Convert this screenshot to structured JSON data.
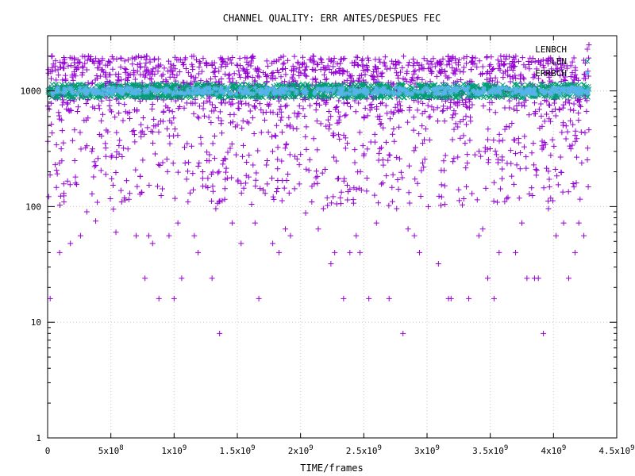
{
  "chart_data": {
    "type": "scatter",
    "title": "CHANNEL QUALITY: ERR ANTES/DESPUES FEC",
    "xlabel": "TIME/frames",
    "ylabel": "",
    "xlim": [
      0,
      4500000000
    ],
    "ylim": [
      1,
      3000
    ],
    "yscale": "log",
    "grid": true,
    "legend_position": "top-right",
    "x_ticks": [
      {
        "value": 0,
        "base": "0",
        "exp": ""
      },
      {
        "value": 500000000,
        "base": "5x10",
        "exp": "8"
      },
      {
        "value": 1000000000,
        "base": "1x10",
        "exp": "9"
      },
      {
        "value": 1500000000,
        "base": "1.5x10",
        "exp": "9"
      },
      {
        "value": 2000000000,
        "base": "2x10",
        "exp": "9"
      },
      {
        "value": 2500000000,
        "base": "2.5x10",
        "exp": "9"
      },
      {
        "value": 3000000000,
        "base": "3x10",
        "exp": "9"
      },
      {
        "value": 3500000000,
        "base": "3.5x10",
        "exp": "9"
      },
      {
        "value": 4000000000,
        "base": "4x10",
        "exp": "9"
      },
      {
        "value": 4500000000,
        "base": "4.5x10",
        "exp": "9"
      }
    ],
    "y_ticks": [
      {
        "value": 1,
        "label": "1"
      },
      {
        "value": 10,
        "label": "10"
      },
      {
        "value": 100,
        "label": "100"
      },
      {
        "value": 1000,
        "label": "1000"
      }
    ],
    "series": [
      {
        "name": "LENBCH",
        "color": "#9400d3",
        "marker": "plus",
        "points": [
          [
            20000000,
            16
          ],
          [
            60000000,
            230
          ],
          [
            95000000,
            40
          ],
          [
            130000000,
            110
          ],
          [
            180000000,
            48
          ],
          [
            220000000,
            180
          ],
          [
            260000000,
            56
          ],
          [
            310000000,
            90
          ],
          [
            350000000,
            300
          ],
          [
            380000000,
            75
          ],
          [
            410000000,
            420
          ],
          [
            460000000,
            190
          ],
          [
            520000000,
            95
          ],
          [
            540000000,
            60
          ],
          [
            600000000,
            320
          ],
          [
            650000000,
            130
          ],
          [
            700000000,
            56
          ],
          [
            730000000,
            128
          ],
          [
            770000000,
            24
          ],
          [
            800000000,
            56
          ],
          [
            830000000,
            48
          ],
          [
            880000000,
            16
          ],
          [
            910000000,
            240
          ],
          [
            960000000,
            56
          ],
          [
            1000000000,
            16
          ],
          [
            1030000000,
            72
          ],
          [
            1060000000,
            24
          ],
          [
            1110000000,
            110
          ],
          [
            1160000000,
            56
          ],
          [
            1190000000,
            40
          ],
          [
            1250000000,
            150
          ],
          [
            1300000000,
            24
          ],
          [
            1330000000,
            96
          ],
          [
            1360000000,
            8
          ],
          [
            1400000000,
            260
          ],
          [
            1460000000,
            72
          ],
          [
            1530000000,
            48
          ],
          [
            1590000000,
            180
          ],
          [
            1640000000,
            72
          ],
          [
            1670000000,
            16
          ],
          [
            1720000000,
            130
          ],
          [
            1780000000,
            48
          ],
          [
            1830000000,
            40
          ],
          [
            1880000000,
            64
          ],
          [
            1920000000,
            56
          ],
          [
            1990000000,
            230
          ],
          [
            2040000000,
            88
          ],
          [
            2090000000,
            150
          ],
          [
            2140000000,
            64
          ],
          [
            2180000000,
            96
          ],
          [
            2240000000,
            32
          ],
          [
            2270000000,
            40
          ],
          [
            2340000000,
            16
          ],
          [
            2390000000,
            40
          ],
          [
            2440000000,
            56
          ],
          [
            2470000000,
            40
          ],
          [
            2540000000,
            16
          ],
          [
            2600000000,
            72
          ],
          [
            2650000000,
            160
          ],
          [
            2700000000,
            16
          ],
          [
            2760000000,
            96
          ],
          [
            2810000000,
            8
          ],
          [
            2850000000,
            64
          ],
          [
            2900000000,
            56
          ],
          [
            2940000000,
            40
          ],
          [
            3010000000,
            100
          ],
          [
            3090000000,
            32
          ],
          [
            3170000000,
            16
          ],
          [
            3190000000,
            16
          ],
          [
            3250000000,
            140
          ],
          [
            3330000000,
            16
          ],
          [
            3410000000,
            56
          ],
          [
            3440000000,
            64
          ],
          [
            3480000000,
            24
          ],
          [
            3530000000,
            16
          ],
          [
            3570000000,
            40
          ],
          [
            3640000000,
            120
          ],
          [
            3700000000,
            40
          ],
          [
            3750000000,
            72
          ],
          [
            3790000000,
            24
          ],
          [
            3850000000,
            24
          ],
          [
            3880000000,
            24
          ],
          [
            3920000000,
            8
          ],
          [
            3960000000,
            96
          ],
          [
            4020000000,
            56
          ],
          [
            4080000000,
            72
          ],
          [
            4120000000,
            24
          ],
          [
            4170000000,
            40
          ],
          [
            4200000000,
            72
          ],
          [
            4240000000,
            56
          ],
          [
            4270000000,
            320
          ],
          [
            4280000000,
            2500
          ]
        ],
        "dense_band": {
          "x_range": [
            0,
            4280000000
          ],
          "y_range": [
            400,
            2000
          ],
          "count": 1500,
          "seed": 7
        }
      },
      {
        "name": "LEN",
        "color": "#009e73",
        "marker": "x",
        "band": {
          "x_range": [
            0,
            4280000000
          ],
          "y_center": 1000,
          "y_spread": 0.06
        }
      },
      {
        "name": "ERRBCH",
        "color": "#56b4e9",
        "marker": "star",
        "band": {
          "x_range": [
            0,
            4280000000
          ],
          "y_center": 1000,
          "y_spread": 0.03
        }
      }
    ]
  }
}
